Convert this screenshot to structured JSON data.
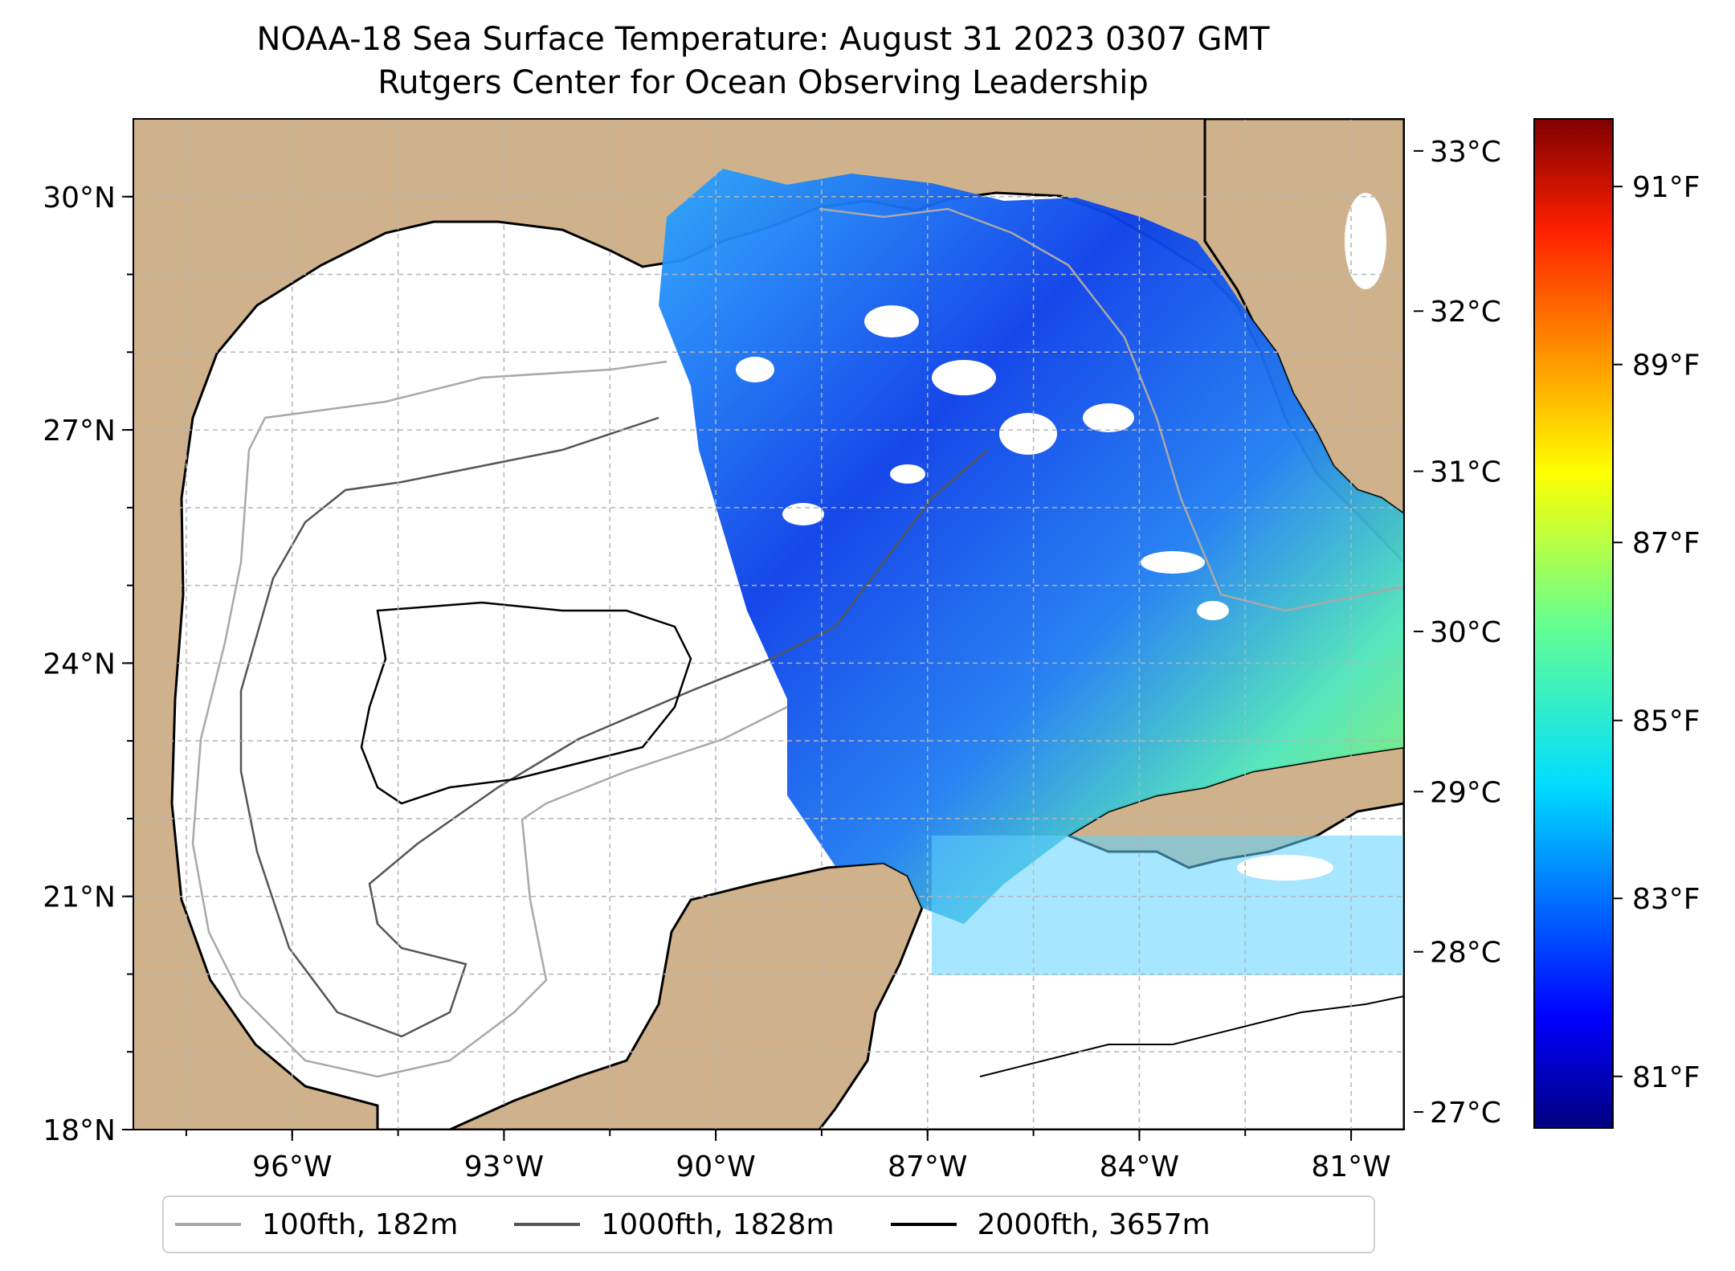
{
  "title_line1": "NOAA-18 Sea Surface Temperature: August 31 2023 0307 GMT",
  "title_line2": "Rutgers Center for Ocean Observing Leadership",
  "map": {
    "lon_ticks": [
      "96°W",
      "93°W",
      "90°W",
      "87°W",
      "84°W",
      "81°W"
    ],
    "lat_ticks": [
      "30°N",
      "27°N",
      "24°N",
      "21°N",
      "18°N"
    ],
    "extent": {
      "lon_min": -98.25,
      "lon_max": -80.25,
      "lat_min": 18.0,
      "lat_max": 31.0
    },
    "colors": {
      "land": "#cfb28b",
      "water_bodies": "#9cb7df",
      "grid": "#b5b5b5"
    }
  },
  "colorbar": {
    "colormap": "jet",
    "celsius_ticks": [
      "33°C",
      "32°C",
      "31°C",
      "30°C",
      "29°C",
      "28°C",
      "27°C"
    ],
    "fahrenheit_ticks": [
      "91°F",
      "89°F",
      "87°F",
      "85°F",
      "83°F",
      "81°F"
    ]
  },
  "legend": [
    {
      "label": "100fth, 182m",
      "color": "#a8a8a8"
    },
    {
      "label": "1000fth, 1828m",
      "color": "#555555"
    },
    {
      "label": "2000fth, 3657m",
      "color": "#000000"
    }
  ]
}
